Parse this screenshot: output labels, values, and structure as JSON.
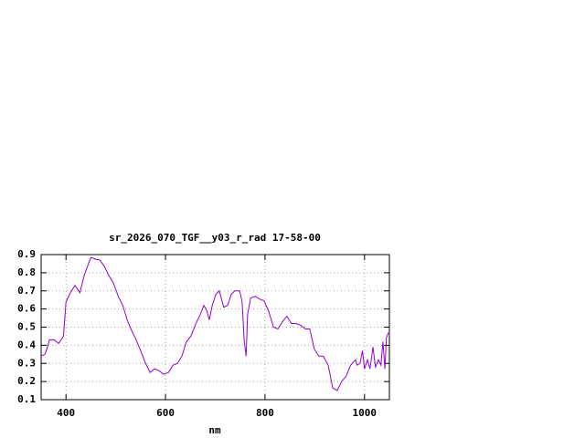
{
  "chart_data": {
    "type": "line",
    "title": "sr_2026_070_TGF__y03_r_rad 17-58-00",
    "x_label": "nm",
    "x": [
      350,
      358,
      367,
      376,
      385,
      395,
      400,
      409,
      418,
      428,
      437,
      450,
      459,
      468,
      477,
      486,
      495,
      505,
      514,
      523,
      532,
      541,
      550,
      560,
      569,
      578,
      587,
      596,
      606,
      615,
      624,
      633,
      642,
      651,
      661,
      670,
      677,
      683,
      688,
      694,
      701,
      708,
      717,
      725,
      732,
      739,
      749,
      754,
      758,
      762,
      765,
      771,
      780,
      789,
      798,
      807,
      817,
      826,
      835,
      844,
      853,
      862,
      872,
      881,
      890,
      899,
      908,
      917,
      927,
      936,
      945,
      954,
      963,
      972,
      982,
      985,
      991,
      996,
      1000,
      1006,
      1011,
      1017,
      1022,
      1028,
      1033,
      1037,
      1041,
      1044,
      1048
    ],
    "series": [
      {
        "color": "#9400d3",
        "values": [
          0.34,
          0.35,
          0.43,
          0.43,
          0.41,
          0.45,
          0.64,
          0.69,
          0.73,
          0.69,
          0.79,
          0.885,
          0.875,
          0.87,
          0.835,
          0.785,
          0.745,
          0.67,
          0.62,
          0.54,
          0.48,
          0.43,
          0.37,
          0.3,
          0.25,
          0.27,
          0.26,
          0.24,
          0.25,
          0.29,
          0.3,
          0.34,
          0.42,
          0.45,
          0.52,
          0.57,
          0.62,
          0.59,
          0.54,
          0.62,
          0.68,
          0.7,
          0.61,
          0.62,
          0.68,
          0.7,
          0.7,
          0.64,
          0.43,
          0.34,
          0.57,
          0.66,
          0.67,
          0.655,
          0.645,
          0.59,
          0.5,
          0.49,
          0.53,
          0.56,
          0.52,
          0.52,
          0.51,
          0.49,
          0.49,
          0.38,
          0.34,
          0.34,
          0.29,
          0.165,
          0.15,
          0.2,
          0.23,
          0.29,
          0.32,
          0.29,
          0.3,
          0.37,
          0.27,
          0.32,
          0.27,
          0.39,
          0.28,
          0.32,
          0.29,
          0.42,
          0.27,
          0.44,
          0.47
        ]
      }
    ],
    "xlim": [
      350,
      1050
    ],
    "xticks": [
      400,
      600,
      800,
      1000
    ],
    "ylim": [
      0.1,
      0.9
    ],
    "yticks": [
      0.1,
      0.2,
      0.3,
      0.4,
      0.5,
      0.6,
      0.7,
      0.8,
      0.9
    ],
    "grid": true
  }
}
